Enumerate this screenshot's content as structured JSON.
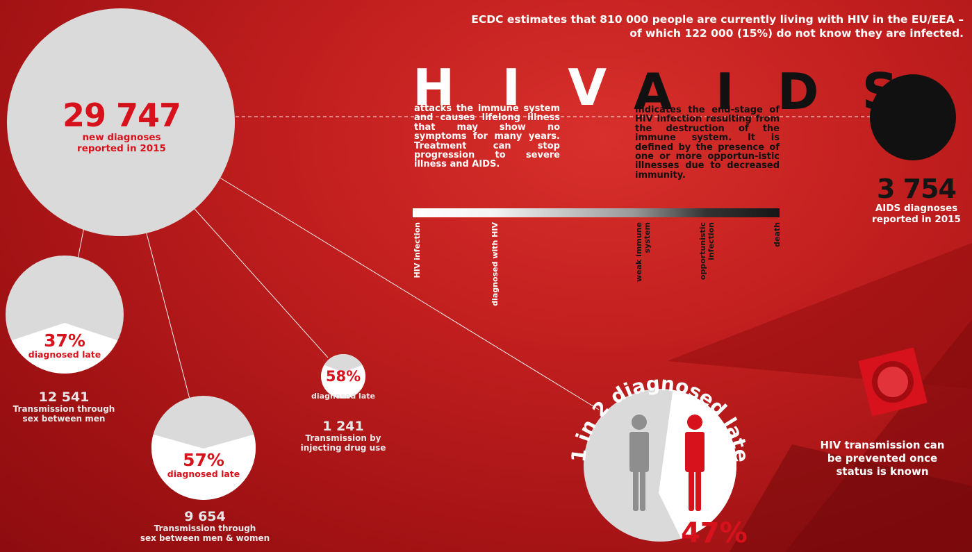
{
  "headline": {
    "line1": "ECDC estimates that 810 000 people are currently living with HIV in the EU/EEA –",
    "line2": "of which 122 000 (15%) do not know they are infected."
  },
  "new_diagnoses": {
    "value": "29 747",
    "label_line1": "new diagnoses",
    "label_line2": "reported in 2015"
  },
  "hiv": {
    "letters": "H  I  V",
    "description": "attacks the immune system and causes lifelong illness that may show no symptoms for many years. Treatment can stop progression to severe illness and AIDS."
  },
  "aids": {
    "letters": "A  I  D  S",
    "description": "indicates the end-stage of HIV infection resulting from the destruction of the immune system. It is defined by the presence of one or more opportun-istic illnesses due to decreased immunity."
  },
  "scale_labels": {
    "hiv_infection": "HIV infection",
    "diagnosed": "diagnosed with HIV",
    "weak_immune_1": "weak immune",
    "weak_immune_2": "system",
    "opportunistic_1": "opportunistic",
    "opportunistic_2": "infection",
    "death": "death"
  },
  "aids_diagnoses": {
    "value": "3 754",
    "label_line1": "AIDS diagnoses",
    "label_line2": "reported in 2015"
  },
  "groups": [
    {
      "percent": "37%",
      "late_label": "diagnosed late",
      "count": "12 541",
      "desc_line1": "Transmission through",
      "desc_line2": "sex between men",
      "late_fraction": 0.37
    },
    {
      "percent": "57%",
      "late_label": "diagnosed late",
      "count": "9 654",
      "desc_line1": "Transmission through",
      "desc_line2": "sex between men & women",
      "late_fraction": 0.57
    },
    {
      "percent": "58%",
      "late_label": "diagnosed late",
      "count": "1 241",
      "desc_line1": "Transmission by",
      "desc_line2": "injecting drug use",
      "late_fraction": 0.58
    }
  ],
  "overall_late": {
    "arc_text": "1 in 2 diagnosed late",
    "percent": "47%",
    "late_fraction": 0.47
  },
  "prevention": {
    "line1": "HIV transmission can",
    "line2": "be prevented once",
    "line3": "status is known"
  },
  "colors": {
    "background": "#b8181a",
    "accent_red": "#d8121c",
    "circle_grey": "#dadada",
    "figure_grey": "#8e8e8e",
    "aids_black": "#111111"
  }
}
